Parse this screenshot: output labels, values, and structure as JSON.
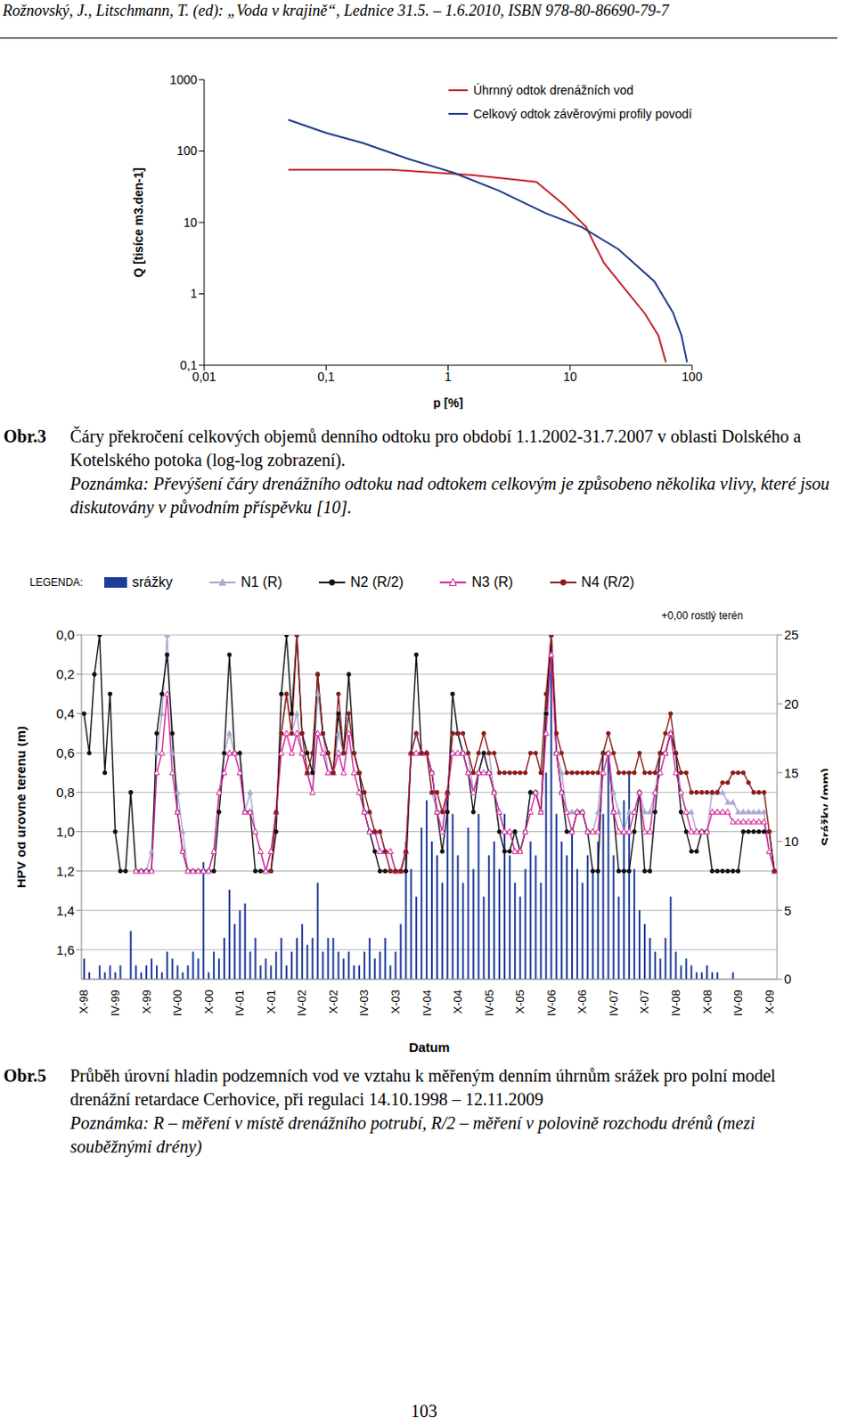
{
  "header": "Rožnovský, J., Litschmann, T. (ed): „Voda v krajině“, Lednice 31.5. – 1.6.2010, ISBN 978-80-86690-79-7",
  "chart_data": [
    {
      "type": "line",
      "log": true,
      "grid": false,
      "legend": "upper right",
      "xlabel": "p [%]",
      "ylabel": "Q [tisíce m3.den-1]",
      "xlim": [
        0.01,
        100
      ],
      "ylim": [
        0.1,
        1000
      ],
      "xticks": [
        {
          "value": 0.01,
          "label": "0,01"
        },
        {
          "value": 0.1,
          "label": "0,1"
        },
        1,
        10,
        100
      ],
      "yticks": [
        {
          "value": 0.1,
          "label": "0,1"
        },
        1,
        10,
        100,
        1000
      ],
      "series": [
        {
          "name": "Úhrnný odtok drenážních vod",
          "color": "#c0282d",
          "x": [
            0.049,
            0.1,
            0.34,
            1.6,
            3,
            5.3,
            8.8,
            13.5,
            16,
            19,
            29,
            41,
            53,
            61
          ],
          "values": [
            55,
            55,
            55,
            46,
            41,
            37,
            18,
            8.7,
            4.8,
            2.7,
            1.1,
            0.53,
            0.26,
            0.11
          ]
        },
        {
          "name": "Celkový odtok závěrovými profily povodí",
          "color": "#1f3c8c",
          "x": [
            0.049,
            0.1,
            0.2,
            0.48,
            1.1,
            2.6,
            6.3,
            12.5,
            25,
            49,
            70,
            82,
            91
          ],
          "values": [
            275,
            180,
            130,
            77,
            50,
            28,
            13.5,
            8.6,
            4.2,
            1.5,
            0.54,
            0.26,
            0.11
          ]
        }
      ]
    },
    {
      "type": "combo",
      "grid": true,
      "legend": "top",
      "legend_title": "LEGENDA:",
      "annotation": "+0,00 rostlý terén",
      "xlabel": "Datum",
      "ylabel": "HPV od úrovně terénu (m)",
      "y2label": "Srážky (mm)",
      "ylim": [
        1.75,
        0
      ],
      "yticks": [
        {
          "value": 0,
          "label": "0,0"
        },
        {
          "value": 0.2,
          "label": "0,2"
        },
        {
          "value": 0.4,
          "label": "0,4"
        },
        {
          "value": 0.6,
          "label": "0,6"
        },
        {
          "value": 0.8,
          "label": "0,8"
        },
        {
          "value": 1,
          "label": "1,0"
        },
        {
          "value": 1.2,
          "label": "1,2"
        },
        {
          "value": 1.4,
          "label": "1,4"
        },
        {
          "value": 1.6,
          "label": "1,6"
        }
      ],
      "y2lim": [
        0,
        25
      ],
      "y2ticks": [
        0,
        5,
        10,
        15,
        20,
        25
      ],
      "categories": [
        "X-98",
        null,
        null,
        null,
        null,
        null,
        "IV-99",
        null,
        null,
        null,
        null,
        null,
        "X-99",
        null,
        null,
        null,
        null,
        null,
        "IV-00",
        null,
        null,
        null,
        null,
        null,
        "X-00",
        null,
        null,
        null,
        null,
        null,
        "IV-01",
        null,
        null,
        null,
        null,
        null,
        "X-01",
        null,
        null,
        null,
        null,
        null,
        "IV-02",
        null,
        null,
        null,
        null,
        null,
        "X-02",
        null,
        null,
        null,
        null,
        null,
        "IV-03",
        null,
        null,
        null,
        null,
        null,
        "X-03",
        null,
        null,
        null,
        null,
        null,
        "IV-04",
        null,
        null,
        null,
        null,
        null,
        "X-04",
        null,
        null,
        null,
        null,
        null,
        "IV-05",
        null,
        null,
        null,
        null,
        null,
        "X-05",
        null,
        null,
        null,
        null,
        null,
        "IV-06",
        null,
        null,
        null,
        null,
        null,
        "X-06",
        null,
        null,
        null,
        null,
        null,
        "IV-07",
        null,
        null,
        null,
        null,
        null,
        "X-07",
        null,
        null,
        null,
        null,
        null,
        "IV-08",
        null,
        null,
        null,
        null,
        null,
        "X-08",
        null,
        null,
        null,
        null,
        null,
        "IV-09",
        null,
        null,
        null,
        null,
        null,
        "X-09",
        null
      ],
      "series": [
        {
          "name": "srážky",
          "type": "bar",
          "axis": "y2",
          "color": "#1f3c9c",
          "values": [
            1.5,
            0.5,
            0,
            1,
            0.5,
            1,
            0.5,
            1,
            0,
            3.5,
            1,
            0.5,
            1,
            1.5,
            1,
            0.5,
            2,
            1.5,
            1,
            0.5,
            1,
            2,
            1.5,
            8.5,
            0.5,
            2,
            1.5,
            3,
            6.5,
            4,
            5,
            5.5,
            2,
            3,
            1,
            1.5,
            1,
            2,
            3,
            1,
            2,
            3,
            4,
            2.5,
            3,
            7,
            2,
            3,
            3,
            2,
            1.5,
            2,
            1,
            1,
            2,
            3,
            1.5,
            2,
            3,
            1,
            2,
            4,
            10,
            8,
            6,
            11,
            13,
            10,
            9,
            7,
            13,
            12,
            9,
            7,
            11,
            8,
            12,
            6,
            9,
            10,
            8,
            12,
            9,
            7,
            6,
            8,
            10,
            9,
            7,
            15,
            24,
            12,
            10,
            9,
            11,
            8,
            7,
            9,
            8,
            10,
            12,
            16,
            9,
            6,
            13,
            15,
            8,
            5,
            4,
            3,
            2,
            1.5,
            3,
            6,
            2,
            1,
            1.5,
            1,
            0.5,
            0.5,
            1,
            0.5,
            0.5,
            0,
            0,
            0.5,
            0,
            0,
            0,
            0,
            0,
            0,
            0,
            0
          ]
        },
        {
          "name": "N1 (R)",
          "type": "line",
          "color": "#a8a8cf",
          "marker": "triangle",
          "values": [
            null,
            null,
            null,
            null,
            null,
            null,
            null,
            null,
            null,
            null,
            1.2,
            1.2,
            1.2,
            1.1,
            0.6,
            0.4,
            0.0,
            0.6,
            0.8,
            1.0,
            1.2,
            1.2,
            1.2,
            1.2,
            1.2,
            1.1,
            0.8,
            0.6,
            0.5,
            0.6,
            0.6,
            0.9,
            0.8,
            1.0,
            1.1,
            1.2,
            1.1,
            0.9,
            0.5,
            0.3,
            0.5,
            0.4,
            0.6,
            0.7,
            0.8,
            0.3,
            0.5,
            0.7,
            0.7,
            0.5,
            0.6,
            0.4,
            0.6,
            0.7,
            0.9,
            0.9,
            1.0,
            1.0,
            1.1,
            1.1,
            1.2,
            1.2,
            1.1,
            0.6,
            0.5,
            0.6,
            0.6,
            0.8,
            0.9,
            1.0,
            0.8,
            0.5,
            0.5,
            0.6,
            0.6,
            0.8,
            0.7,
            0.6,
            0.6,
            0.8,
            0.9,
            1.0,
            1.0,
            1.0,
            1.1,
            1.0,
            0.8,
            0.8,
            0.9,
            0.4,
            0.0,
            0.6,
            0.7,
            0.9,
            0.9,
            0.9,
            0.9,
            1.0,
            1.0,
            0.9,
            0.6,
            0.6,
            0.8,
            0.9,
            1.0,
            0.9,
            0.9,
            0.8,
            0.9,
            0.9,
            0.8,
            0.6,
            0.6,
            0.5,
            0.6,
            0.8,
            0.9,
            0.9,
            1.0,
            1.0,
            1.0,
            0.8,
            0.8,
            0.8,
            0.85,
            0.85,
            0.9,
            0.9,
            0.9,
            0.9,
            0.9,
            0.9,
            1.1,
            1.2
          ]
        },
        {
          "name": "N2 (R/2)",
          "type": "line",
          "color": "#111111",
          "marker": "circle",
          "values": [
            0.4,
            0.6,
            0.2,
            0.0,
            0.7,
            0.3,
            1.0,
            1.2,
            1.2,
            0.8,
            1.2,
            1.2,
            1.2,
            1.2,
            0.5,
            0.3,
            0.1,
            0.5,
            0.9,
            1.1,
            1.2,
            1.2,
            1.2,
            1.2,
            1.2,
            1.2,
            0.9,
            0.6,
            0.1,
            0.6,
            0.6,
            0.9,
            0.9,
            1.2,
            1.2,
            1.2,
            1.2,
            1.0,
            0.3,
            0.0,
            0.4,
            0.0,
            0.5,
            0.6,
            0.7,
            0.2,
            0.5,
            0.6,
            0.7,
            0.4,
            0.6,
            0.2,
            0.6,
            0.7,
            0.9,
            1.0,
            1.1,
            1.2,
            1.2,
            1.2,
            1.2,
            1.2,
            1.2,
            0.6,
            0.1,
            0.6,
            0.6,
            0.7,
            0.9,
            1.1,
            0.9,
            0.3,
            0.5,
            0.6,
            0.7,
            0.9,
            0.7,
            0.6,
            0.7,
            0.8,
            1.0,
            1.1,
            1.1,
            1.0,
            1.1,
            1.0,
            0.8,
            0.8,
            0.9,
            0.4,
            0.0,
            0.6,
            0.8,
            1.0,
            1.0,
            0.9,
            0.9,
            1.0,
            1.2,
            1.2,
            0.6,
            0.6,
            0.9,
            1.2,
            1.2,
            1.2,
            1.0,
            0.8,
            1.2,
            1.2,
            0.9,
            0.6,
            0.6,
            0.5,
            0.6,
            0.9,
            1.0,
            1.1,
            1.1,
            1.0,
            1.0,
            1.2,
            1.2,
            1.2,
            1.2,
            1.2,
            1.2,
            1.0,
            1.0,
            1.0,
            1.0,
            1.0,
            1.0,
            1.2
          ]
        },
        {
          "name": "N3 (R)",
          "type": "line",
          "color": "#d4259c",
          "marker": "open_triangle",
          "values": [
            null,
            null,
            null,
            null,
            null,
            null,
            null,
            null,
            null,
            null,
            1.2,
            1.2,
            1.2,
            1.2,
            0.7,
            0.6,
            0.3,
            0.7,
            0.9,
            1.1,
            1.2,
            1.2,
            1.2,
            1.2,
            1.2,
            1.1,
            0.8,
            0.7,
            0.6,
            0.6,
            0.7,
            0.9,
            0.9,
            1.0,
            1.1,
            1.2,
            1.1,
            0.9,
            0.6,
            0.5,
            0.6,
            0.5,
            0.6,
            0.7,
            0.8,
            0.5,
            0.6,
            0.7,
            0.7,
            0.6,
            0.7,
            0.5,
            0.7,
            0.8,
            0.9,
            1.0,
            1.0,
            1.1,
            1.1,
            1.1,
            1.2,
            1.2,
            1.1,
            0.6,
            0.6,
            0.6,
            0.6,
            0.7,
            0.9,
            1.0,
            0.8,
            0.6,
            0.6,
            0.6,
            0.7,
            0.8,
            0.7,
            0.7,
            0.7,
            0.8,
            0.9,
            1.0,
            1.0,
            1.1,
            1.1,
            1.0,
            0.9,
            0.8,
            0.9,
            0.5,
            0.1,
            0.6,
            0.8,
            0.9,
            1.0,
            0.9,
            0.9,
            1.0,
            1.0,
            1.0,
            0.7,
            0.6,
            0.9,
            1.0,
            1.0,
            1.0,
            0.9,
            0.8,
            1.0,
            1.0,
            0.8,
            0.7,
            0.6,
            0.5,
            0.7,
            0.8,
            0.9,
            1.0,
            1.0,
            1.0,
            1.0,
            0.9,
            0.9,
            0.9,
            0.9,
            0.95,
            0.95,
            0.95,
            0.95,
            0.95,
            0.95,
            0.95,
            1.1,
            1.2
          ]
        },
        {
          "name": "N4 (R/2)",
          "type": "line",
          "color": "#8b1c1c",
          "marker": "circle",
          "values": [
            null,
            null,
            null,
            null,
            null,
            null,
            null,
            null,
            null,
            null,
            null,
            null,
            null,
            null,
            null,
            null,
            null,
            null,
            null,
            null,
            null,
            null,
            null,
            null,
            null,
            null,
            null,
            null,
            null,
            null,
            null,
            null,
            null,
            null,
            null,
            null,
            1.2,
            0.9,
            0.5,
            0.3,
            0.5,
            0.0,
            0.5,
            0.7,
            0.6,
            0.2,
            0.5,
            0.6,
            0.7,
            0.3,
            0.6,
            0.4,
            0.6,
            0.7,
            0.8,
            0.9,
            1.0,
            1.0,
            1.1,
            1.2,
            1.2,
            1.2,
            1.1,
            0.6,
            0.5,
            0.6,
            0.6,
            0.8,
            0.8,
            0.9,
            0.8,
            0.5,
            0.5,
            0.5,
            0.6,
            0.7,
            0.6,
            0.5,
            0.6,
            0.6,
            0.7,
            0.7,
            0.7,
            0.7,
            0.7,
            0.7,
            0.6,
            0.6,
            0.7,
            0.3,
            0.0,
            0.5,
            0.6,
            0.7,
            0.7,
            0.7,
            0.7,
            0.7,
            0.7,
            0.7,
            0.6,
            0.5,
            0.6,
            0.7,
            0.7,
            0.7,
            0.7,
            0.6,
            0.7,
            0.7,
            0.7,
            0.6,
            0.5,
            0.4,
            0.6,
            0.7,
            0.7,
            0.8,
            0.8,
            0.8,
            0.8,
            0.8,
            0.8,
            0.75,
            0.75,
            0.7,
            0.7,
            0.7,
            0.75,
            0.8,
            0.8,
            0.8,
            1.0,
            1.2
          ]
        }
      ]
    }
  ],
  "captions": [
    {
      "label": "Obr.3",
      "text": "Čáry překročení celkových objemů denního odtoku pro období 1.1.2002-31.7.2007 v oblasti Dolského a Kotelského potoka (log-log zobrazení).",
      "note": "Poznámka: Převýšení čáry drenážního odtoku nad odtokem celkovým je způsobeno několika vlivy, které jsou diskutovány v původním příspěvku [10]."
    },
    {
      "label": "Obr.5",
      "text": "Průběh úrovní hladin podzemních vod ve vztahu k měřeným denním úhrnům srážek pro polní model drenážní retardace Cerhovice, při regulaci 14.10.1998 – 12.11.2009",
      "note": "Poznámka: R – měření v místě drenážního potrubí, R/2 – měření v polovině rozchodu drénů (mezi souběžnými drény)"
    }
  ],
  "page_number": "103"
}
